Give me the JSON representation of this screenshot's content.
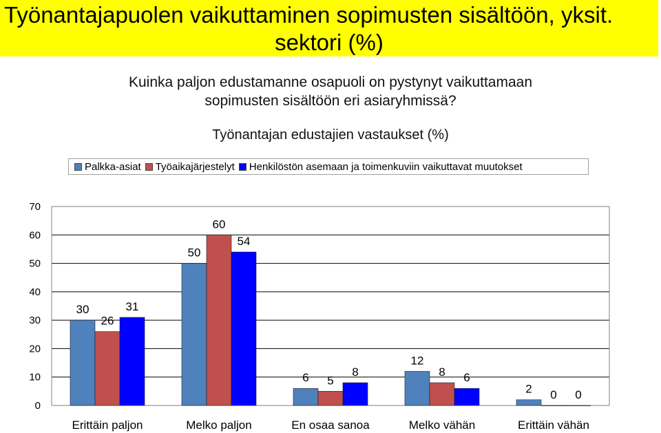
{
  "title_line1": "Työnantajapuolen vaikuttaminen sopimusten sisältöön, yksit.",
  "title_line2": "sektori  (%)",
  "question_line1": "Kuinka paljon edustamanne osapuoli on pystynyt vaikuttamaan",
  "question_line2": "sopimusten sisältöön eri asiaryhmissä?",
  "subtitle": "Työnantajan edustajien vastaukset (%)",
  "chart_data": {
    "type": "bar",
    "categories": [
      "Erittäin paljon",
      "Melko paljon",
      "En osaa sanoa",
      "Melko vähän",
      "Erittäin vähän"
    ],
    "series": [
      {
        "name": "Palkka-asiat",
        "color": "#4f81bd",
        "values": [
          30,
          50,
          6,
          12,
          2
        ]
      },
      {
        "name": "Työaikajärjestelyt",
        "color": "#c0504d",
        "values": [
          26,
          60,
          5,
          8,
          0
        ]
      },
      {
        "name": "Henkilöstön asemaan ja toimenkuviin vaikuttavat muutokset",
        "color": "#0000ff",
        "values": [
          31,
          54,
          8,
          6,
          0
        ]
      }
    ],
    "ylim": [
      0,
      70
    ],
    "yticks": [
      0,
      10,
      20,
      30,
      40,
      50,
      60,
      70
    ],
    "grid": true,
    "legend": "top"
  }
}
